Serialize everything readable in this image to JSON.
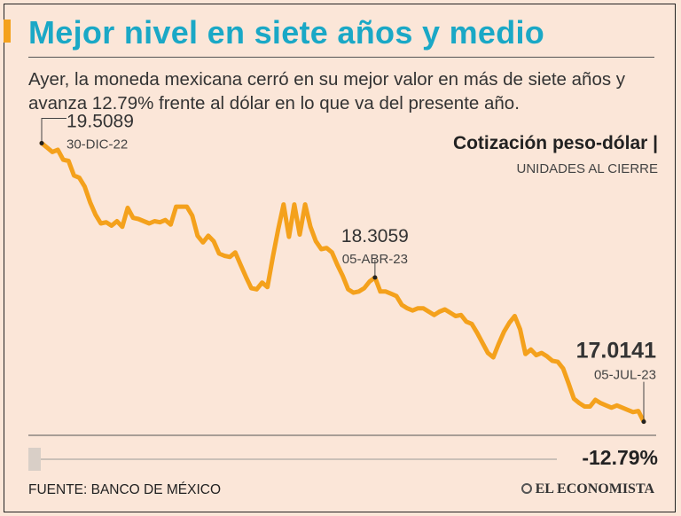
{
  "header": {
    "title": "Mejor nivel en siete años y medio",
    "subtitle": "Ayer, la moneda mexicana cerró en su mejor valor en más de siete años y avanza 12.79% frente al dólar en lo que va del presente año."
  },
  "legend": {
    "label": "Cotización peso-dólar |",
    "sublabel": "UNIDADES AL CIERRE"
  },
  "footer": {
    "source": "FUENTE: BANCO DE MÉXICO",
    "brand": "EL ECONOMISTA"
  },
  "colors": {
    "title": "#1aa8c6",
    "accent": "#f4a11c",
    "line": "#f4a11c",
    "background": "#fbe6d8"
  },
  "chart_data": {
    "type": "line",
    "title": "Cotización peso-dólar",
    "subtitle": "UNIDADES AL CIERRE",
    "xlabel": "",
    "ylabel": "",
    "x_range": [
      "30-DIC-22",
      "05-JUL-23"
    ],
    "ylim": [
      16.9,
      19.6
    ],
    "series": [
      {
        "name": "Peso-dólar",
        "values": [
          19.5089,
          19.47,
          19.43,
          19.45,
          19.36,
          19.35,
          19.22,
          19.2,
          19.12,
          18.98,
          18.87,
          18.79,
          18.8,
          18.77,
          18.81,
          18.76,
          18.93,
          18.84,
          18.83,
          18.81,
          18.79,
          18.81,
          18.8,
          18.82,
          18.78,
          18.94,
          18.94,
          18.94,
          18.86,
          18.68,
          18.62,
          18.68,
          18.63,
          18.52,
          18.5,
          18.49,
          18.53,
          18.42,
          18.31,
          18.21,
          18.2,
          18.26,
          18.22,
          18.49,
          18.74,
          18.96,
          18.67,
          18.96,
          18.69,
          18.96,
          18.76,
          18.63,
          18.56,
          18.57,
          18.53,
          18.42,
          18.32,
          18.2,
          18.17,
          18.18,
          18.21,
          18.27,
          18.3059,
          18.18,
          18.18,
          18.16,
          18.14,
          18.06,
          18.03,
          18.01,
          18.03,
          18.03,
          18.0,
          17.97,
          18.0,
          18.02,
          17.99,
          17.96,
          17.97,
          17.91,
          17.89,
          17.81,
          17.72,
          17.63,
          17.59,
          17.71,
          17.82,
          17.9,
          17.96,
          17.84,
          17.62,
          17.66,
          17.61,
          17.63,
          17.6,
          17.56,
          17.55,
          17.49,
          17.36,
          17.22,
          17.18,
          17.15,
          17.15,
          17.21,
          17.18,
          17.16,
          17.14,
          17.16,
          17.14,
          17.12,
          17.1,
          17.11,
          17.0141
        ]
      }
    ],
    "annotations": [
      {
        "index": 0,
        "value": "19.5089",
        "date": "30-DIC-22"
      },
      {
        "index": 62,
        "value": "18.3059",
        "date": "05-ABR-23"
      },
      {
        "index": 112,
        "value": "17.0141",
        "date": "05-JUL-23"
      }
    ],
    "change": "-12.79%"
  }
}
